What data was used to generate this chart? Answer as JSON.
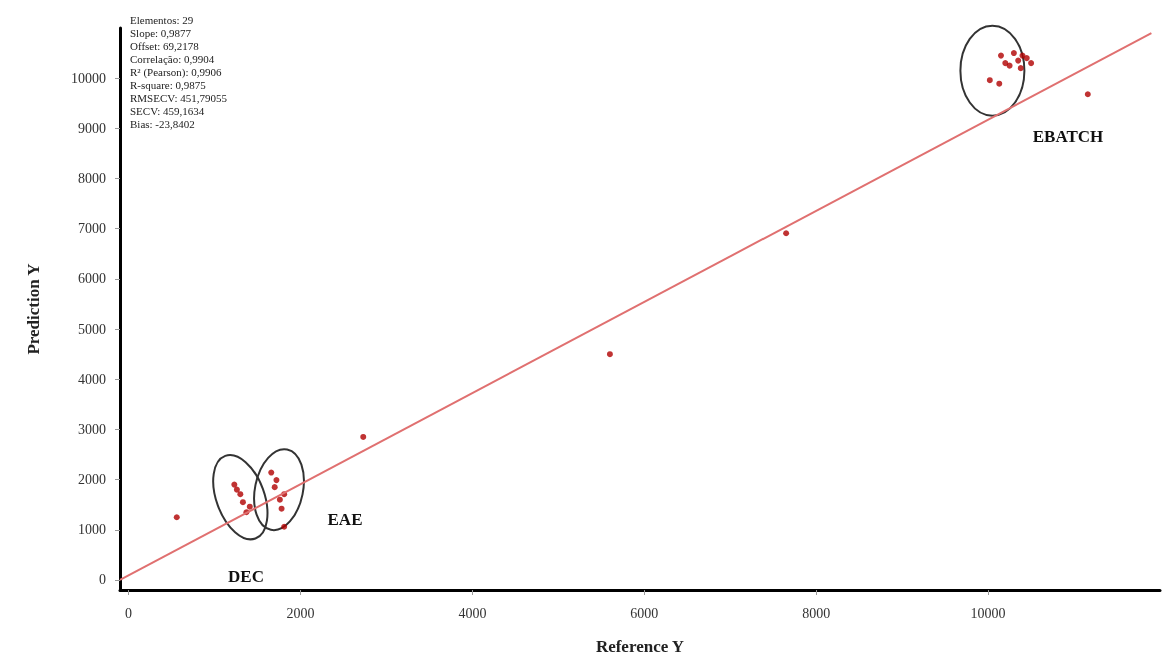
{
  "chart_data": {
    "type": "scatter",
    "xlabel": "Reference Y",
    "ylabel": "Prediction Y",
    "xlim": [
      -100,
      12000
    ],
    "ylim": [
      -200,
      11000
    ],
    "xticks": [
      0,
      2000,
      4000,
      6000,
      8000,
      10000
    ],
    "yticks": [
      0,
      1000,
      2000,
      3000,
      4000,
      5000,
      6000,
      7000,
      8000,
      9000,
      10000
    ],
    "grid": false,
    "marker": "circle",
    "series": [
      {
        "color": "#b00000",
        "x": [
          560,
          1230,
          1300,
          1370,
          1410,
          1260,
          1330,
          1660,
          1720,
          1810,
          1780,
          1810,
          1700,
          1760,
          2730,
          5600,
          7650,
          10020,
          10130,
          11160,
          10200,
          10350,
          10400,
          10300,
          10250,
          10450,
          10150,
          10500,
          10380
        ],
        "values": [
          1250,
          1900,
          1710,
          1350,
          1460,
          1800,
          1550,
          2140,
          1990,
          1710,
          1420,
          1060,
          1850,
          1600,
          2850,
          4500,
          6910,
          9960,
          9890,
          9680,
          10300,
          10350,
          10450,
          10500,
          10250,
          10400,
          10450,
          10300,
          10200
        ]
      },
      {
        "type": "line",
        "color": "#e07070",
        "line_style": "solid",
        "marker": "none",
        "x": [
          -100,
          11900
        ],
        "values": [
          0,
          10900
        ]
      }
    ],
    "annotations": [
      "Elementos: 29",
      "Slope: 0,9877",
      "Offset: 69,2178",
      "Correlação: 0,9904",
      "R² (Pearson): 0,9906",
      "R-square: 0,9875",
      "RMSECV: 451,79055",
      "SECV: 459,1634",
      "Bias: -23,8402",
      "DEC",
      "EAE",
      "EBATCH"
    ]
  }
}
